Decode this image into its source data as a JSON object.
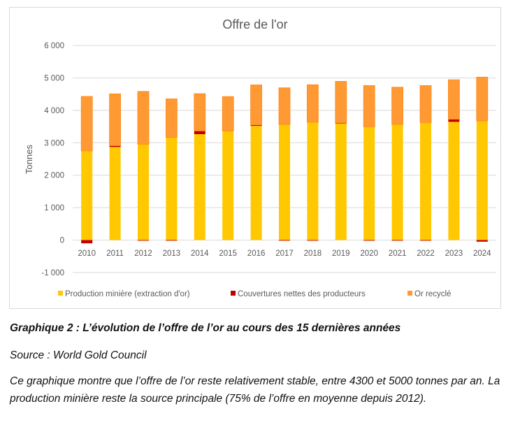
{
  "chart_data": {
    "type": "bar",
    "stacked": true,
    "title": "Offre de l'or",
    "ylabel": "Tonnes",
    "xlabel": "",
    "ylim": [
      -1000,
      6000
    ],
    "yticks": [
      -1000,
      0,
      1000,
      2000,
      3000,
      4000,
      5000,
      6000
    ],
    "ytick_labels": [
      "-1 000",
      "0",
      "1 000",
      "2 000",
      "3 000",
      "4 000",
      "5 000",
      "6 000"
    ],
    "grid": true,
    "legend_position": "bottom",
    "categories": [
      "2010",
      "2011",
      "2012",
      "2013",
      "2014",
      "2015",
      "2016",
      "2017",
      "2018",
      "2019",
      "2020",
      "2021",
      "2022",
      "2023",
      "2024"
    ],
    "series": [
      {
        "name": "Production minière (extraction d'or)",
        "color": "#FFC800",
        "values": [
          2750,
          2870,
          2955,
          3165,
          3265,
          3365,
          3520,
          3565,
          3635,
          3595,
          3495,
          3565,
          3625,
          3645,
          3675
        ]
      },
      {
        "name": "Couvertures nettes des producteurs",
        "color": "#C00000",
        "values": [
          -100,
          40,
          -20,
          -20,
          100,
          0,
          30,
          -20,
          -20,
          20,
          -20,
          -20,
          -20,
          80,
          -50
        ]
      },
      {
        "name": "Or recyclé",
        "color": "#FF9933",
        "values": [
          1680,
          1600,
          1630,
          1190,
          1150,
          1060,
          1235,
          1130,
          1155,
          1280,
          1270,
          1150,
          1140,
          1220,
          1350
        ]
      }
    ]
  },
  "caption": "Graphique 2 : L’évolution de l’offre de l’or au cours des 15 dernières années",
  "source": "Source : World Gold Council",
  "description": "Ce graphique montre que l’offre de l’or reste relativement stable, entre 4300 et 5000 tonnes par an. La production minière reste la source principale (75% de l’offre en moyenne depuis 2012)."
}
